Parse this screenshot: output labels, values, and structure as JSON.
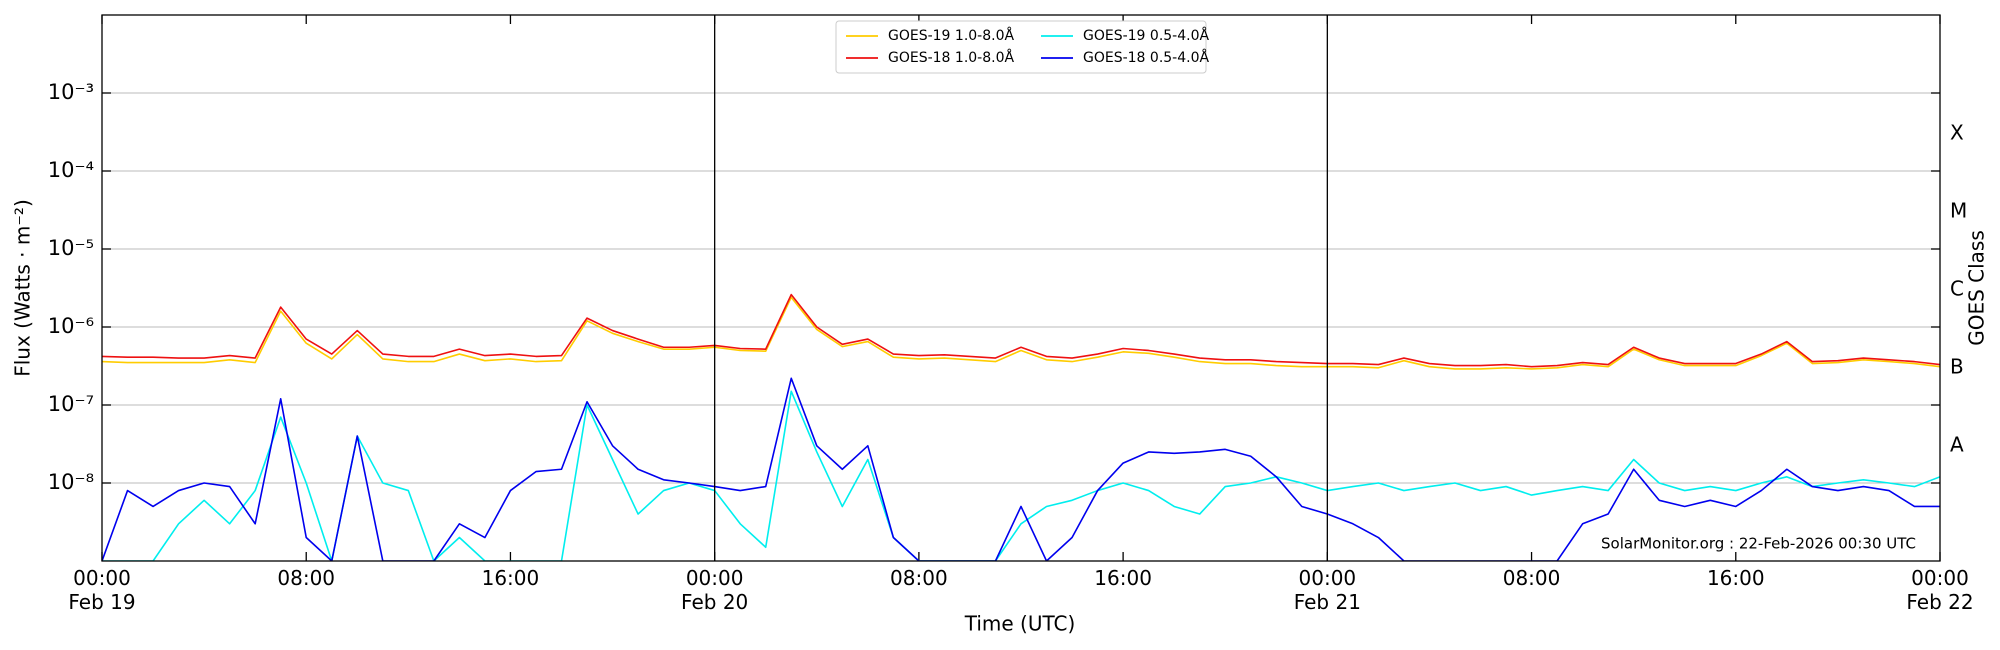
{
  "chart_data": {
    "type": "line",
    "y_label": "Flux (Watts · m⁻²)",
    "x_label": "Time (UTC)",
    "y2_label": "GOES Class",
    "annotation": "SolarMonitor.org : 22-Feb-2026 00:30 UTC",
    "log_y": true,
    "grid": true,
    "legend": "upper center",
    "x": [
      0,
      1,
      2,
      3,
      4,
      5,
      6,
      7,
      8,
      9,
      10,
      11,
      12,
      13,
      14,
      15,
      16,
      17,
      18,
      19,
      20,
      21,
      22,
      23,
      24,
      25,
      26,
      27,
      28,
      29,
      30,
      31,
      32,
      33,
      34,
      35,
      36,
      37,
      38,
      39,
      40,
      41,
      42,
      43,
      44,
      45,
      46,
      47,
      48,
      49,
      50,
      51,
      52,
      53,
      54,
      55,
      56,
      57,
      58,
      59,
      60,
      61,
      62,
      63,
      64,
      65,
      66,
      67,
      68,
      69,
      70,
      71,
      72
    ],
    "xlim": [
      0,
      72
    ],
    "xticks": [
      {
        "value": 0,
        "label": "00:00\nFeb 19"
      },
      {
        "value": 8,
        "label": "08:00"
      },
      {
        "value": 16,
        "label": "16:00"
      },
      {
        "value": 24,
        "label": "00:00\nFeb 20"
      },
      {
        "value": 32,
        "label": "08:00"
      },
      {
        "value": 40,
        "label": "16:00"
      },
      {
        "value": 48,
        "label": "00:00\nFeb 21"
      },
      {
        "value": 56,
        "label": "08:00"
      },
      {
        "value": 64,
        "label": "16:00"
      },
      {
        "value": 72,
        "label": "00:00\nFeb 22"
      }
    ],
    "day_lines": [
      24,
      48
    ],
    "ylim": [
      1e-09,
      0.01
    ],
    "yticks": [
      {
        "value": 0.001,
        "label": "10⁻³"
      },
      {
        "value": 0.0001,
        "label": "10⁻⁴"
      },
      {
        "value": 1e-05,
        "label": "10⁻⁵"
      },
      {
        "value": 1e-06,
        "label": "10⁻⁶"
      },
      {
        "value": 1e-07,
        "label": "10⁻⁷"
      },
      {
        "value": 1e-08,
        "label": "10⁻⁸"
      }
    ],
    "y2lim": [
      1e-09,
      0.01
    ],
    "y2ticks": [
      {
        "value": 0.0003,
        "label": "X"
      },
      {
        "value": 3e-05,
        "label": "M"
      },
      {
        "value": 3e-06,
        "label": "C"
      },
      {
        "value": 3e-07,
        "label": "B"
      },
      {
        "value": 3e-08,
        "label": "A"
      }
    ],
    "series": [
      {
        "name": "GOES-19 1.0-8.0Å",
        "color": "#ffcc00",
        "values": [
          3.6e-07,
          3.5e-07,
          3.5e-07,
          3.5e-07,
          3.5e-07,
          3.8e-07,
          3.5e-07,
          1.6e-06,
          6.2e-07,
          3.9e-07,
          8e-07,
          3.9e-07,
          3.6e-07,
          3.6e-07,
          4.5e-07,
          3.7e-07,
          3.9e-07,
          3.6e-07,
          3.7e-07,
          1.2e-06,
          8.3e-07,
          6.5e-07,
          5.2e-07,
          5.2e-07,
          5.5e-07,
          5e-07,
          4.9e-07,
          2.4e-06,
          9.3e-07,
          5.6e-07,
          6.5e-07,
          4.1e-07,
          3.9e-07,
          4e-07,
          3.8e-07,
          3.6e-07,
          5e-07,
          3.8e-07,
          3.6e-07,
          4.1e-07,
          4.8e-07,
          4.6e-07,
          4.1e-07,
          3.6e-07,
          3.4e-07,
          3.4e-07,
          3.2e-07,
          3.1e-07,
          3.1e-07,
          3.1e-07,
          3e-07,
          3.7e-07,
          3.1e-07,
          2.9e-07,
          2.9e-07,
          3e-07,
          2.9e-07,
          3e-07,
          3.3e-07,
          3.1e-07,
          5.2e-07,
          3.8e-07,
          3.2e-07,
          3.2e-07,
          3.2e-07,
          4.3e-07,
          6.2e-07,
          3.4e-07,
          3.5e-07,
          3.8e-07,
          3.6e-07,
          3.4e-07,
          3.1e-07
        ]
      },
      {
        "name": "GOES-18 1.0-8.0Å",
        "color": "#ee1111",
        "values": [
          4.2e-07,
          4.1e-07,
          4.1e-07,
          4e-07,
          4e-07,
          4.3e-07,
          4e-07,
          1.8e-06,
          7e-07,
          4.5e-07,
          9e-07,
          4.5e-07,
          4.2e-07,
          4.2e-07,
          5.2e-07,
          4.3e-07,
          4.5e-07,
          4.2e-07,
          4.3e-07,
          1.3e-06,
          9e-07,
          7e-07,
          5.5e-07,
          5.5e-07,
          5.8e-07,
          5.3e-07,
          5.2e-07,
          2.6e-06,
          1e-06,
          6e-07,
          7e-07,
          4.5e-07,
          4.3e-07,
          4.4e-07,
          4.2e-07,
          4e-07,
          5.5e-07,
          4.2e-07,
          4e-07,
          4.5e-07,
          5.3e-07,
          5e-07,
          4.5e-07,
          4e-07,
          3.8e-07,
          3.8e-07,
          3.6e-07,
          3.5e-07,
          3.4e-07,
          3.4e-07,
          3.3e-07,
          4e-07,
          3.4e-07,
          3.2e-07,
          3.2e-07,
          3.3e-07,
          3.1e-07,
          3.2e-07,
          3.5e-07,
          3.3e-07,
          5.5e-07,
          4e-07,
          3.4e-07,
          3.4e-07,
          3.4e-07,
          4.5e-07,
          6.5e-07,
          3.6e-07,
          3.7e-07,
          4e-07,
          3.8e-07,
          3.6e-07,
          3.3e-07
        ]
      },
      {
        "name": "GOES-19 0.5-4.0Å",
        "color": "#00eeee",
        "values": [
          1e-09,
          1e-09,
          1e-09,
          3e-09,
          6e-09,
          3e-09,
          8e-09,
          7e-08,
          1e-08,
          1e-09,
          4e-08,
          1e-08,
          8e-09,
          1e-09,
          2e-09,
          1e-09,
          1e-09,
          1e-09,
          1e-09,
          1e-07,
          2e-08,
          4e-09,
          8e-09,
          1e-08,
          8e-09,
          3e-09,
          1.5e-09,
          1.5e-07,
          2.5e-08,
          5e-09,
          2e-08,
          2e-09,
          1e-09,
          1e-09,
          1e-09,
          1e-09,
          3e-09,
          5e-09,
          6e-09,
          8e-09,
          1e-08,
          8e-09,
          5e-09,
          4e-09,
          9e-09,
          1e-08,
          1.2e-08,
          1e-08,
          8e-09,
          9e-09,
          1e-08,
          8e-09,
          9e-09,
          1e-08,
          8e-09,
          9e-09,
          7e-09,
          8e-09,
          9e-09,
          8e-09,
          2e-08,
          1e-08,
          8e-09,
          9e-09,
          8e-09,
          1e-08,
          1.2e-08,
          9e-09,
          1e-08,
          1.1e-08,
          1e-08,
          9e-09,
          1.2e-08
        ]
      },
      {
        "name": "GOES-18 0.5-4.0Å",
        "color": "#0000ee",
        "values": [
          1e-09,
          8e-09,
          5e-09,
          8e-09,
          1e-08,
          9e-09,
          3e-09,
          1.2e-07,
          2e-09,
          1e-09,
          4e-08,
          1e-09,
          1e-09,
          1e-09,
          3e-09,
          2e-09,
          8e-09,
          1.4e-08,
          1.5e-08,
          1.1e-07,
          3e-08,
          1.5e-08,
          1.1e-08,
          1e-08,
          9e-09,
          8e-09,
          9e-09,
          2.2e-07,
          3e-08,
          1.5e-08,
          3e-08,
          2e-09,
          1e-09,
          1e-09,
          1e-09,
          1e-09,
          5e-09,
          1e-09,
          2e-09,
          8e-09,
          1.8e-08,
          2.5e-08,
          2.4e-08,
          2.5e-08,
          2.7e-08,
          2.2e-08,
          1.2e-08,
          5e-09,
          4e-09,
          3e-09,
          2e-09,
          1e-09,
          1e-09,
          1e-09,
          1e-09,
          1e-09,
          1e-09,
          1e-09,
          3e-09,
          4e-09,
          1.5e-08,
          6e-09,
          5e-09,
          6e-09,
          5e-09,
          8e-09,
          1.5e-08,
          9e-09,
          8e-09,
          9e-09,
          8e-09,
          5e-09,
          5e-09
        ]
      }
    ]
  }
}
